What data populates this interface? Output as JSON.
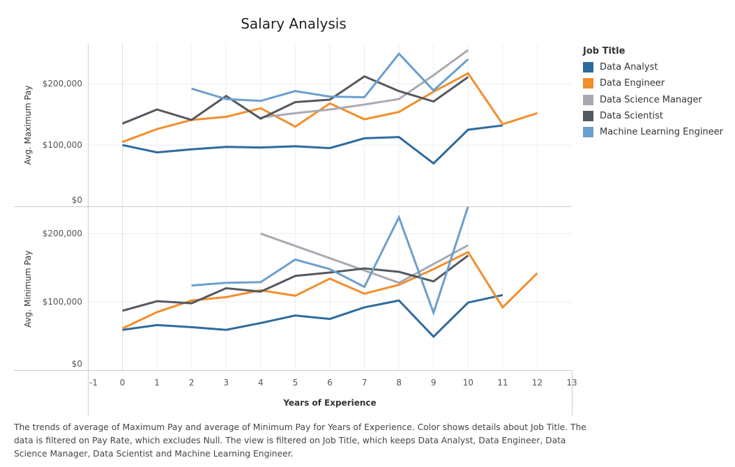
{
  "title": "Salary Analysis",
  "caption": "The trends of average of Maximum Pay and average of Minimum Pay for Years of Experience.  Color shows details about Job Title. The data is filtered on Pay Rate, which excludes Null. The view is filtered on Job Title, which keeps Data Analyst, Data Engineer, Data Science Manager, Data Scientist and Machine Learning Engineer.",
  "legend": {
    "title": "Job Title",
    "items": [
      {
        "label": "Data Analyst",
        "color": "#2e6a9e"
      },
      {
        "label": "Data Engineer",
        "color": "#f28e2b"
      },
      {
        "label": "Data Science Manager",
        "color": "#a9a9b3"
      },
      {
        "label": "Data Scientist",
        "color": "#545960"
      },
      {
        "label": "Machine Learning Engineer",
        "color": "#6a9fce"
      }
    ]
  },
  "chart_data": [
    {
      "type": "line",
      "ylabel": "Avg. Maximum Pay",
      "xlabel": "Years of Experience",
      "xlim": [
        -1,
        13
      ],
      "ylim": [
        0,
        265000
      ],
      "yticks": [
        0,
        100000,
        200000
      ],
      "ytick_labels": [
        "$0",
        "$100,000",
        "$200,000"
      ],
      "series": [
        {
          "name": "Data Analyst",
          "color": "#2e6a9e",
          "points": [
            [
              0,
              100000
            ],
            [
              1,
              88000
            ],
            [
              2,
              93000
            ],
            [
              3,
              97000
            ],
            [
              4,
              96000
            ],
            [
              5,
              98000
            ],
            [
              6,
              95000
            ],
            [
              7,
              111000
            ],
            [
              8,
              113000
            ],
            [
              9,
              70000
            ],
            [
              10,
              125000
            ],
            [
              11,
              132000
            ]
          ]
        },
        {
          "name": "Data Engineer",
          "color": "#f28e2b",
          "points": [
            [
              0,
              105000
            ],
            [
              1,
              126000
            ],
            [
              2,
              141000
            ],
            [
              3,
              146000
            ],
            [
              4,
              160000
            ],
            [
              5,
              130000
            ],
            [
              6,
              168000
            ],
            [
              7,
              142000
            ],
            [
              8,
              154000
            ],
            [
              9,
              187000
            ],
            [
              10,
              217000
            ],
            [
              11,
              134000
            ],
            [
              12,
              152000
            ]
          ]
        },
        {
          "name": "Data Science Manager",
          "color": "#a9a9b3",
          "points": [
            [
              4,
              145000
            ],
            [
              5,
              152000
            ],
            [
              6,
              158000
            ],
            [
              7,
              166000
            ],
            [
              8,
              175000
            ],
            [
              9,
              214000
            ],
            [
              10,
              255000
            ]
          ]
        },
        {
          "name": "Data Scientist",
          "color": "#545960",
          "points": [
            [
              0,
              135000
            ],
            [
              1,
              158000
            ],
            [
              2,
              141000
            ],
            [
              3,
              180000
            ],
            [
              4,
              143000
            ],
            [
              5,
              170000
            ],
            [
              6,
              174000
            ],
            [
              7,
              212000
            ],
            [
              8,
              188000
            ],
            [
              9,
              171000
            ],
            [
              10,
              211000
            ]
          ]
        },
        {
          "name": "Machine Learning Engineer",
          "color": "#6a9fce",
          "points": [
            [
              2,
              192000
            ],
            [
              3,
              175000
            ],
            [
              4,
              172000
            ],
            [
              5,
              188000
            ],
            [
              6,
              179000
            ],
            [
              7,
              178000
            ],
            [
              8,
              249000
            ],
            [
              9,
              189000
            ],
            [
              10,
              240000
            ]
          ]
        }
      ]
    },
    {
      "type": "line",
      "ylabel": "Avg. Minimum Pay",
      "xlabel": "Years of Experience",
      "xlim": [
        -1,
        13
      ],
      "ylim": [
        0,
        238000
      ],
      "yticks": [
        0,
        100000,
        200000
      ],
      "ytick_labels": [
        "$0",
        "$100,000",
        "$200,000"
      ],
      "series": [
        {
          "name": "Data Analyst",
          "color": "#2e6a9e",
          "points": [
            [
              0,
              59000
            ],
            [
              1,
              66000
            ],
            [
              2,
              63000
            ],
            [
              3,
              59000
            ],
            [
              4,
              69000
            ],
            [
              5,
              80000
            ],
            [
              6,
              75000
            ],
            [
              7,
              92000
            ],
            [
              8,
              102000
            ],
            [
              9,
              49000
            ],
            [
              10,
              99000
            ],
            [
              11,
              110000
            ]
          ]
        },
        {
          "name": "Data Engineer",
          "color": "#f28e2b",
          "points": [
            [
              0,
              61000
            ],
            [
              1,
              85000
            ],
            [
              2,
              102000
            ],
            [
              3,
              107000
            ],
            [
              4,
              117000
            ],
            [
              5,
              109000
            ],
            [
              6,
              134000
            ],
            [
              7,
              112000
            ],
            [
              8,
              125000
            ],
            [
              9,
              148000
            ],
            [
              10,
              173000
            ],
            [
              11,
              92000
            ],
            [
              12,
              142000
            ]
          ]
        },
        {
          "name": "Data Science Manager",
          "color": "#a9a9b3",
          "points": [
            [
              4,
              200000
            ],
            [
              8,
              128000
            ],
            [
              10,
              183000
            ]
          ]
        },
        {
          "name": "Data Scientist",
          "color": "#545960",
          "points": [
            [
              0,
              87000
            ],
            [
              1,
              101000
            ],
            [
              2,
              98000
            ],
            [
              3,
              120000
            ],
            [
              4,
              115000
            ],
            [
              5,
              138000
            ],
            [
              6,
              143000
            ],
            [
              7,
              149000
            ],
            [
              8,
              144000
            ],
            [
              9,
              130000
            ],
            [
              10,
              168000
            ]
          ]
        },
        {
          "name": "Machine Learning Engineer",
          "color": "#6a9fce",
          "points": [
            [
              2,
              124000
            ],
            [
              3,
              128000
            ],
            [
              4,
              129000
            ],
            [
              5,
              162000
            ],
            [
              6,
              148000
            ],
            [
              7,
              122000
            ],
            [
              8,
              224000
            ],
            [
              9,
              84000
            ],
            [
              10,
              240000
            ]
          ]
        }
      ]
    }
  ]
}
